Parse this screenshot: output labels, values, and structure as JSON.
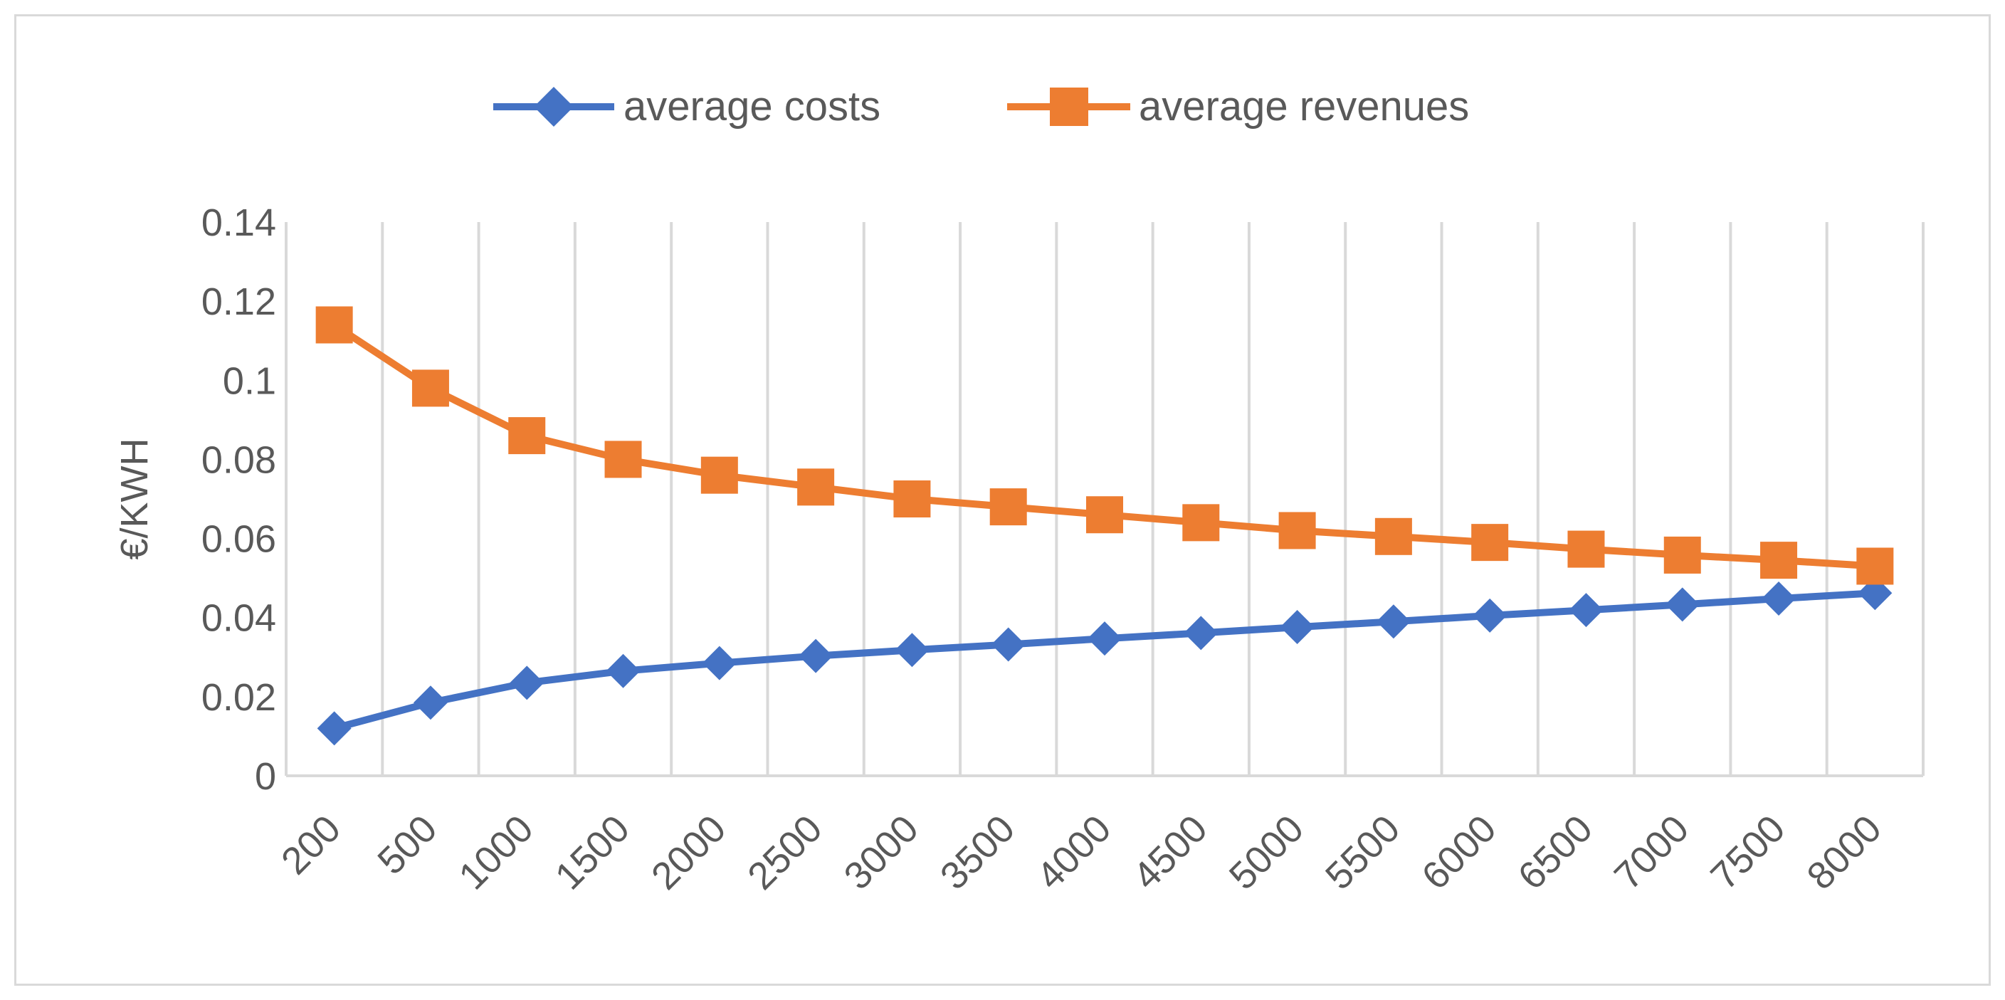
{
  "chart_data": {
    "type": "line",
    "title": "",
    "xlabel": "",
    "ylabel": "€/KWH",
    "categories": [
      "200",
      "500",
      "1000",
      "1500",
      "2000",
      "2500",
      "3000",
      "3500",
      "4000",
      "4500",
      "5000",
      "5500",
      "6000",
      "6500",
      "7000",
      "7500",
      "8000"
    ],
    "ylim": [
      0,
      0.14
    ],
    "yticks": [
      "0",
      "0.02",
      "0.04",
      "0.06",
      "0.08",
      "0.1",
      "0.12",
      "0.14"
    ],
    "grid": "vertical",
    "legend_position": "top-center",
    "series": [
      {
        "name": "average costs",
        "color": "#4472C4",
        "marker": "diamond",
        "values": [
          0.012,
          0.0185,
          0.0235,
          0.0265,
          0.0285,
          0.0303,
          0.0318,
          0.0332,
          0.0347,
          0.0361,
          0.0376,
          0.039,
          0.0405,
          0.0419,
          0.0433,
          0.0448,
          0.0462
        ]
      },
      {
        "name": "average revenues",
        "color": "#ED7D31",
        "marker": "square",
        "values": [
          0.114,
          0.098,
          0.086,
          0.08,
          0.076,
          0.073,
          0.07,
          0.068,
          0.066,
          0.064,
          0.062,
          0.0605,
          0.059,
          0.0573,
          0.0558,
          0.0545,
          0.053
        ]
      }
    ],
    "grid_color": "#d9d9d9"
  }
}
